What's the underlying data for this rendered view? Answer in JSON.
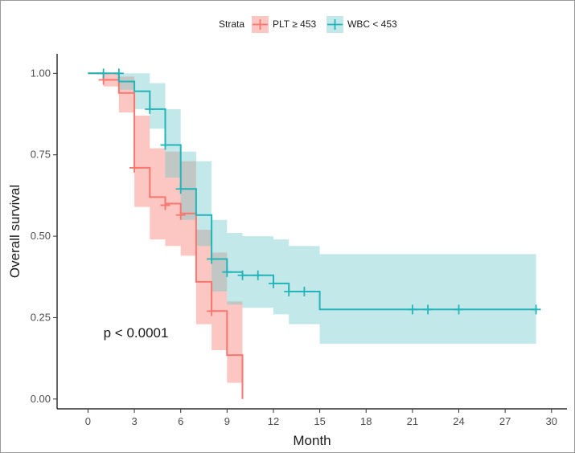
{
  "chart_data": {
    "type": "line",
    "subtype": "kaplan-meier",
    "xlabel": "Month",
    "ylabel": "Overall survival",
    "xlim": [
      -2,
      31
    ],
    "ylim": [
      -0.03,
      1.06
    ],
    "xticks": [
      0,
      3,
      6,
      9,
      12,
      15,
      18,
      21,
      24,
      27,
      30
    ],
    "yticks": [
      0.0,
      0.25,
      0.5,
      0.75,
      1.0
    ],
    "ytick_labels": [
      "0.00",
      "0.25",
      "0.50",
      "0.75",
      "1.00"
    ],
    "legend": {
      "title": "Strata",
      "position": "top",
      "entries": [
        "PLT ≥ 453",
        "WBC < 453"
      ]
    },
    "annotation": "p < 0.0001",
    "annotation_at": [
      1,
      0.19
    ],
    "series": [
      {
        "name": "PLT ≥ 453",
        "color": "#F8766D",
        "fill": "#F8766D",
        "steps": [
          [
            0,
            1.0
          ],
          [
            1,
            0.98
          ],
          [
            2,
            0.94
          ],
          [
            3,
            0.71
          ],
          [
            4,
            0.62
          ],
          [
            5,
            0.6
          ],
          [
            6,
            0.57
          ],
          [
            7,
            0.36
          ],
          [
            8,
            0.27
          ],
          [
            9,
            0.135
          ],
          [
            10,
            0.0
          ]
        ],
        "upper": [
          1.0,
          1.0,
          0.99,
          0.87,
          0.77,
          0.76,
          0.73,
          0.52,
          0.45,
          0.3,
          0.0
        ],
        "lower": [
          1.0,
          0.96,
          0.88,
          0.59,
          0.49,
          0.47,
          0.44,
          0.23,
          0.15,
          0.05,
          0.0
        ],
        "end_x": 10,
        "censors": [
          [
            1,
            0.98
          ],
          [
            3,
            0.71
          ],
          [
            5,
            0.595
          ],
          [
            6,
            0.565
          ],
          [
            8,
            0.27
          ]
        ]
      },
      {
        "name": "WBC < 453",
        "color": "#21B4B9",
        "fill": "#6FC7CB",
        "steps": [
          [
            0,
            1.0
          ],
          [
            2,
            0.975
          ],
          [
            3,
            0.945
          ],
          [
            4,
            0.89
          ],
          [
            5,
            0.78
          ],
          [
            6,
            0.645
          ],
          [
            7,
            0.565
          ],
          [
            8,
            0.43
          ],
          [
            9,
            0.39
          ],
          [
            10,
            0.38
          ],
          [
            12,
            0.355
          ],
          [
            13,
            0.33
          ],
          [
            15,
            0.275
          ]
        ],
        "upper": [
          1.0,
          1.0,
          1.0,
          0.97,
          0.89,
          0.76,
          0.73,
          0.55,
          0.51,
          0.5,
          0.49,
          0.47,
          0.445
        ],
        "lower": [
          1.0,
          0.95,
          0.89,
          0.83,
          0.68,
          0.55,
          0.47,
          0.33,
          0.29,
          0.28,
          0.26,
          0.23,
          0.17
        ],
        "end_x": 29,
        "censors": [
          [
            1,
            1.0
          ],
          [
            2,
            1.0
          ],
          [
            4,
            0.89
          ],
          [
            5,
            0.78
          ],
          [
            6,
            0.645
          ],
          [
            8,
            0.43
          ],
          [
            9,
            0.39
          ],
          [
            10,
            0.38
          ],
          [
            11,
            0.38
          ],
          [
            12,
            0.355
          ],
          [
            13,
            0.33
          ],
          [
            14,
            0.33
          ],
          [
            21,
            0.275
          ],
          [
            22,
            0.275
          ],
          [
            24,
            0.275
          ],
          [
            29,
            0.275
          ]
        ]
      }
    ]
  }
}
